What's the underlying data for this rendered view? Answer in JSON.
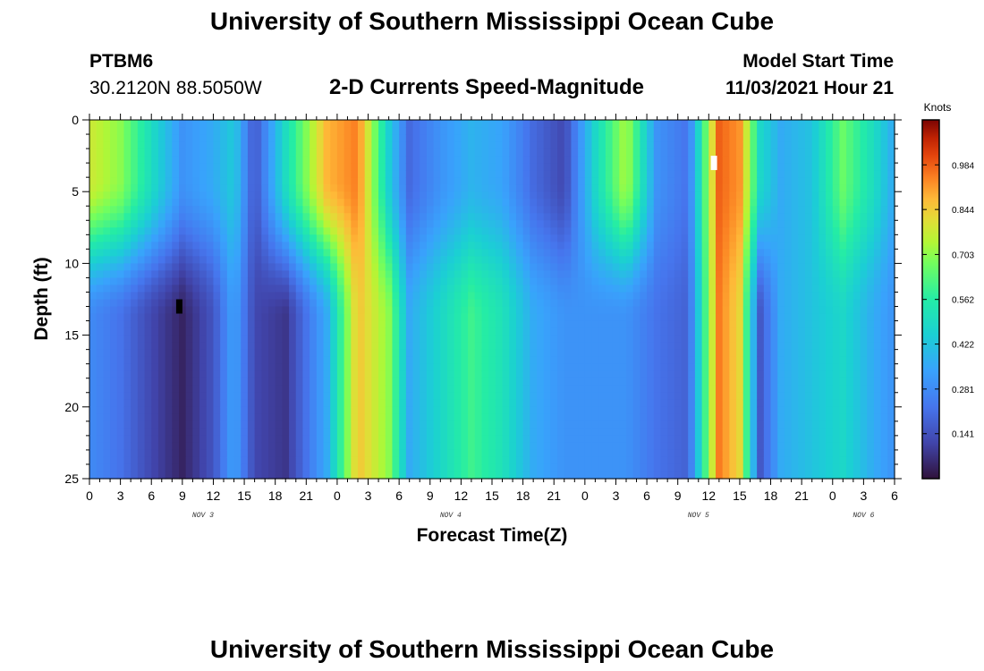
{
  "header": {
    "title": "University of Southern Mississippi Ocean Cube",
    "station": "PTBM6",
    "coords": "30.2120N  88.5050W",
    "plot_title": "2-D Currents Speed-Magnitude",
    "model_start_label": "Model Start Time",
    "model_start_value": "11/03/2021 Hour 21"
  },
  "footer": {
    "title": "University of Southern Mississippi Ocean Cube"
  },
  "chart_data": {
    "type": "heatmap",
    "title": "2-D Currents Speed-Magnitude",
    "xlabel": "Forecast Time(Z)",
    "ylabel": "Depth (ft)",
    "x_range_hours": [
      0,
      78
    ],
    "x_ticks": [
      "0",
      "3",
      "6",
      "9",
      "12",
      "15",
      "18",
      "21",
      "0",
      "3",
      "6",
      "9",
      "12",
      "15",
      "18",
      "21",
      "0",
      "3",
      "6",
      "9",
      "12",
      "15",
      "18",
      "21",
      "0",
      "3",
      "6"
    ],
    "day_labels": [
      {
        "label": "NOV 3",
        "hour": 11
      },
      {
        "label": "NOV 4",
        "hour": 35
      },
      {
        "label": "NOV 5",
        "hour": 59
      },
      {
        "label": "NOV 6",
        "hour": 75
      }
    ],
    "y_range_ft": [
      0,
      25
    ],
    "y_ticks": [
      0,
      5,
      10,
      15,
      20,
      25
    ],
    "colorbar": {
      "label": "Knots",
      "vmin": 0.0,
      "vmax": 1.125,
      "ticks": [
        "0.984",
        "0.844",
        "0.703",
        "0.562",
        "0.422",
        "0.281",
        "0.141"
      ],
      "tick_values": [
        0.984,
        0.844,
        0.703,
        0.562,
        0.422,
        0.281,
        0.141
      ]
    },
    "markers": [
      {
        "hour": 8.7,
        "depth": 13,
        "color": "#000000"
      },
      {
        "hour": 60.5,
        "depth": 3,
        "color": "#ffffff"
      }
    ],
    "speed_profile": {
      "description": "Approximate speed (knots) at hours along forecast time; shallow = 0-8 ft, deep = 13-25 ft",
      "hours": [
        0,
        3,
        6,
        9,
        12,
        14,
        16,
        19,
        23,
        26,
        29,
        31,
        34,
        37,
        40,
        43,
        46,
        49,
        52,
        55,
        58,
        61,
        63,
        65,
        67,
        70,
        73,
        76,
        78
      ],
      "shallow": [
        0.78,
        0.7,
        0.5,
        0.3,
        0.36,
        0.44,
        0.15,
        0.5,
        0.88,
        0.95,
        0.45,
        0.2,
        0.3,
        0.38,
        0.34,
        0.2,
        0.12,
        0.48,
        0.74,
        0.3,
        0.22,
        0.98,
        0.92,
        0.48,
        0.36,
        0.42,
        0.66,
        0.5,
        0.35
      ],
      "deep": [
        0.28,
        0.22,
        0.12,
        0.04,
        0.15,
        0.34,
        0.12,
        0.08,
        0.36,
        0.86,
        0.7,
        0.36,
        0.48,
        0.6,
        0.52,
        0.36,
        0.3,
        0.3,
        0.3,
        0.22,
        0.18,
        0.95,
        0.82,
        0.16,
        0.36,
        0.42,
        0.48,
        0.36,
        0.3
      ]
    }
  }
}
